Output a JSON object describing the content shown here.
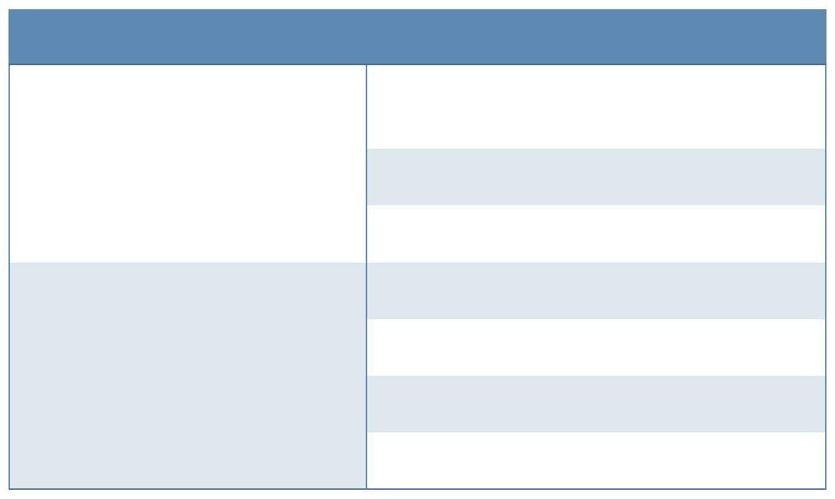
{
  "table": {
    "header": "",
    "colors": {
      "header": "#5d8ab1",
      "band": "#dfe7ef",
      "border": "#45698b"
    },
    "groups": [
      {
        "label": "",
        "rows": [
          "",
          "",
          ""
        ]
      },
      {
        "label": "",
        "rows": [
          "",
          "",
          "",
          ""
        ]
      }
    ]
  }
}
